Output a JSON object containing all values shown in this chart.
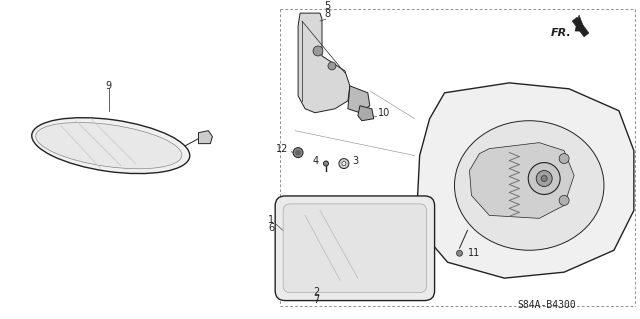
{
  "bg_color": "#ffffff",
  "diagram_code": "S84A-B4300",
  "line_color": "#222222",
  "gray_fill": "#e0e0e0",
  "dark_gray": "#aaaaaa"
}
